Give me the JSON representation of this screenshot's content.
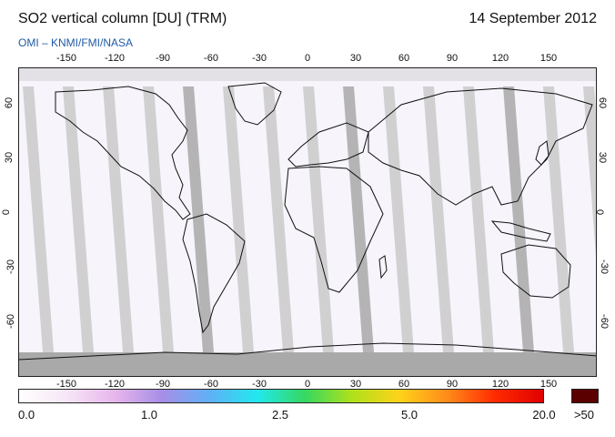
{
  "header": {
    "title": "SO2 vertical column [DU] (TRM)",
    "date": "14 September 2012",
    "credit": "OMI  –  KNMI/FMI/NASA"
  },
  "map": {
    "lon_ticks": [
      "-150",
      "-120",
      "-90",
      "-60",
      "-30",
      "0",
      "30",
      "60",
      "90",
      "120",
      "150"
    ],
    "lat_ticks": [
      "60",
      "30",
      "0",
      "-30",
      "-60"
    ],
    "colors": {
      "background": "#f7f4fb",
      "orbit_gap": "#c9c9c9",
      "orbit_gap_dark": "#a8a8a8",
      "polar_no_data": "#a9a9a9",
      "coastline": "#111111"
    }
  },
  "colorbar": {
    "labels": [
      "0.0",
      "1.0",
      "2.5",
      "5.0",
      "20.0",
      ">50"
    ],
    "gradient": [
      "#ffffff",
      "#f6e6f6",
      "#e8b6ec",
      "#a68ee6",
      "#5fb0f6",
      "#22e8ee",
      "#35d860",
      "#b0e11b",
      "#ffd21a",
      "#ff8a1a",
      "#ff2a00",
      "#e00000"
    ],
    "overflow_color": "#5a0000"
  }
}
